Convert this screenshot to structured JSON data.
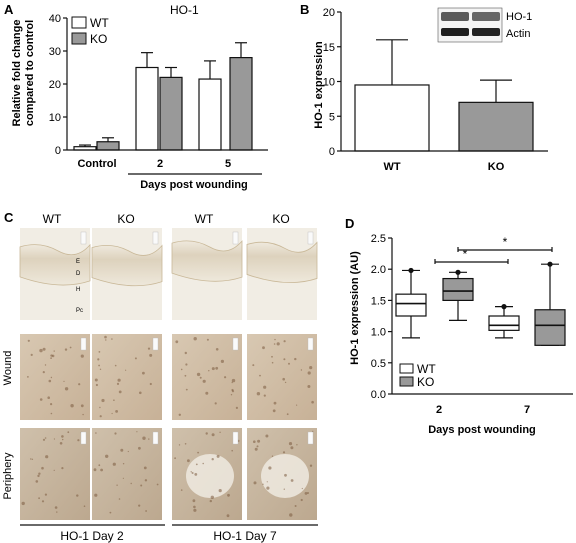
{
  "panels": {
    "a": {
      "letter": "A",
      "title": "HO-1",
      "ylabel_1": "Relative fold change",
      "ylabel_2": "compared to control",
      "xlabel": "Days post wounding",
      "yticks": [
        "0",
        "10",
        "20",
        "30",
        "40"
      ],
      "groups": [
        "Control",
        "2",
        "5"
      ],
      "legend": [
        "WT",
        "KO"
      ]
    },
    "b": {
      "letter": "B",
      "ylabel": "HO-1 expression",
      "yticks": [
        "0",
        "5",
        "10",
        "15",
        "20"
      ],
      "categories": [
        "WT",
        "KO"
      ],
      "blot_labels": [
        "HO-1",
        "Actin"
      ]
    },
    "c": {
      "letter": "C",
      "col_labels": [
        "WT",
        "KO",
        "WT",
        "KO"
      ],
      "row_labels": [
        "Wound",
        "Periphery"
      ],
      "layer_labels": [
        "E",
        "D",
        "H",
        "Pc"
      ],
      "footer": [
        "HO-1 Day 2",
        "HO-1 Day 7"
      ]
    },
    "d": {
      "letter": "D",
      "ylabel": "HO-1 expression (AU)",
      "xlabel": "Days post wounding",
      "yticks": [
        "0.0",
        "0.5",
        "1.0",
        "1.5",
        "2.0",
        "2.5"
      ],
      "groups": [
        "2",
        "7"
      ],
      "legend": [
        "WT",
        "KO"
      ],
      "sig": [
        "*",
        "*"
      ]
    }
  },
  "chart_data": [
    {
      "type": "bar",
      "panel": "A",
      "title": "HO-1",
      "categories": [
        "Control",
        "2",
        "5"
      ],
      "series": [
        {
          "name": "WT",
          "values": [
            1,
            25,
            21.5
          ],
          "errors": [
            0.5,
            4.5,
            5.5
          ]
        },
        {
          "name": "KO",
          "values": [
            2.5,
            22,
            28
          ],
          "errors": [
            1.2,
            3,
            4.5
          ]
        }
      ],
      "xlabel": "Days post wounding",
      "ylabel": "Relative fold change compared to control",
      "ylim": [
        0,
        40
      ],
      "legend": "top-left"
    },
    {
      "type": "bar",
      "panel": "B",
      "categories": [
        "WT",
        "KO"
      ],
      "values": [
        9.5,
        7
      ],
      "errors": [
        6.5,
        3.2
      ],
      "ylabel": "HO-1 expression",
      "ylim": [
        0,
        20
      ]
    },
    {
      "type": "box",
      "panel": "D",
      "categories": [
        "2",
        "7"
      ],
      "series": [
        {
          "name": "WT",
          "boxes": [
            {
              "min": 0.9,
              "q1": 1.25,
              "median": 1.45,
              "q3": 1.6,
              "max": 1.98
            },
            {
              "min": 0.9,
              "q1": 1.02,
              "median": 1.1,
              "q3": 1.25,
              "max": 1.4
            }
          ]
        },
        {
          "name": "KO",
          "boxes": [
            {
              "min": 1.18,
              "q1": 1.5,
              "median": 1.65,
              "q3": 1.85,
              "max": 1.95
            },
            {
              "min": 0.78,
              "q1": 0.78,
              "median": 1.1,
              "q3": 1.35,
              "max": 2.08
            }
          ]
        }
      ],
      "xlabel": "Days post wounding",
      "ylabel": "HO-1 expression (AU)",
      "ylim": [
        0,
        2.5
      ],
      "legend": "bottom-left"
    }
  ]
}
